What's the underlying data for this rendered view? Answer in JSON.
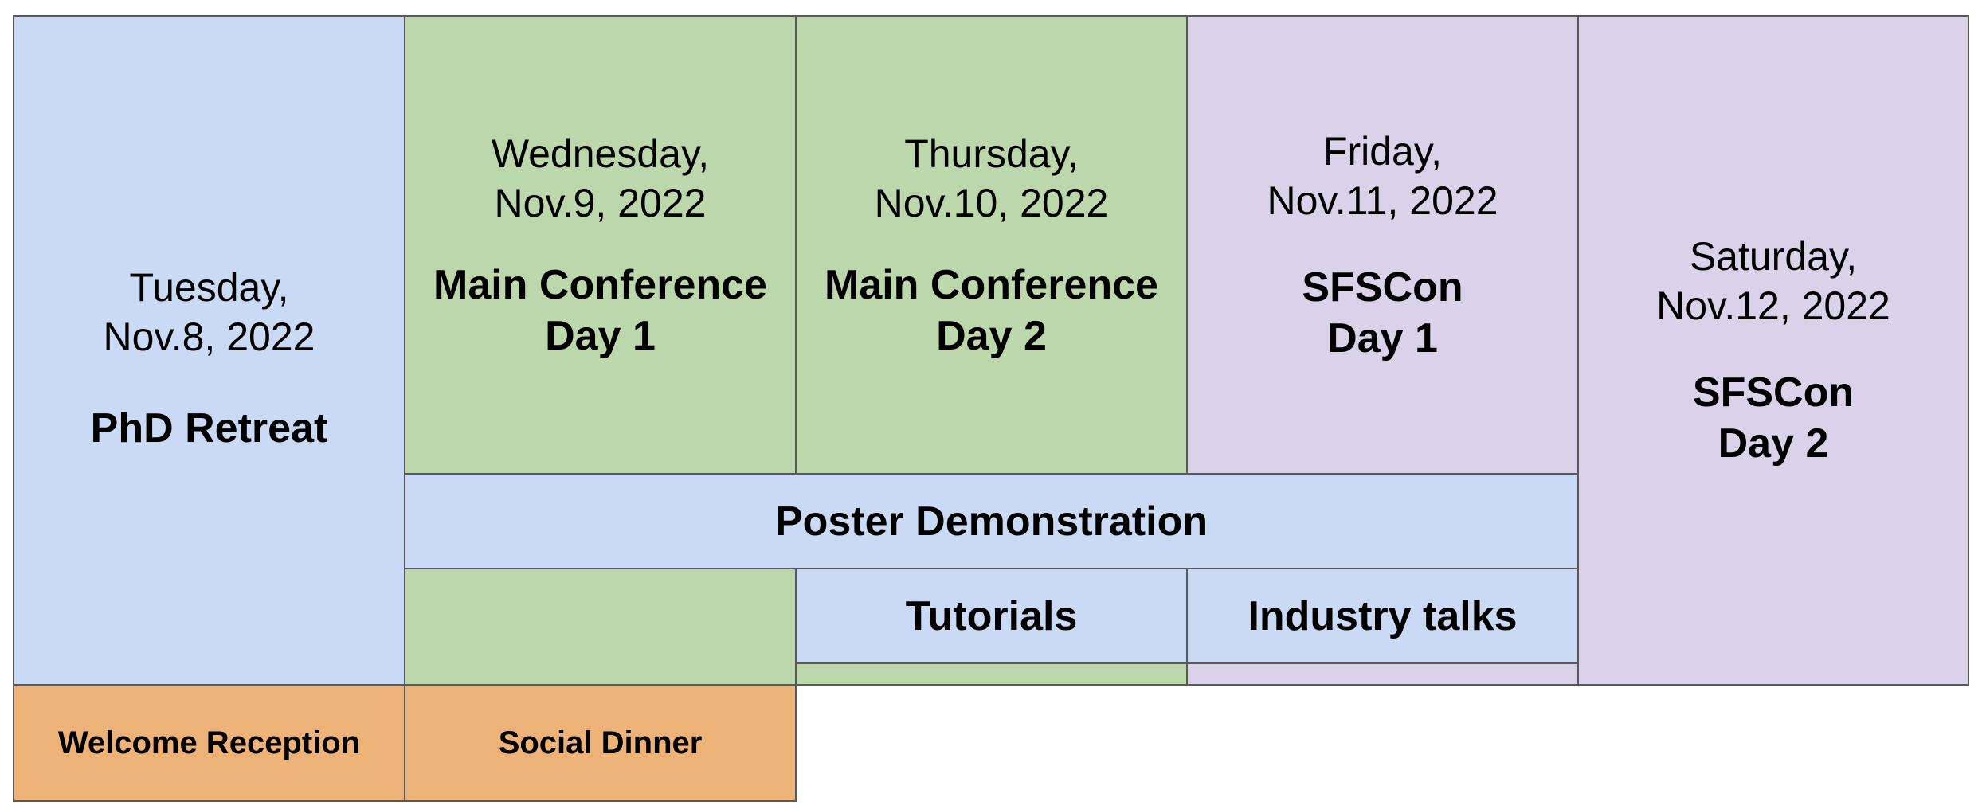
{
  "days": [
    {
      "date_line1": "Tuesday,",
      "date_line2": "Nov.8, 2022",
      "title_line1": "PhD Retreat",
      "title_line2": ""
    },
    {
      "date_line1": "Wednesday,",
      "date_line2": "Nov.9, 2022",
      "title_line1": "Main Conference",
      "title_line2": "Day 1"
    },
    {
      "date_line1": "Thursday,",
      "date_line2": "Nov.10, 2022",
      "title_line1": "Main Conference",
      "title_line2": "Day 2"
    },
    {
      "date_line1": "Friday,",
      "date_line2": "Nov.11, 2022",
      "title_line1": "SFSCon",
      "title_line2": "Day 1"
    },
    {
      "date_line1": "Saturday,",
      "date_line2": "Nov.12, 2022",
      "title_line1": "SFSCon",
      "title_line2": "Day 2"
    }
  ],
  "poster": "Poster Demonstration",
  "tutorials": "Tutorials",
  "industry": "Industry talks",
  "welcome": "Welcome Reception",
  "dinner": "Social Dinner",
  "colors": {
    "blue": "#cbdaf4",
    "green": "#bdd7ad",
    "purple": "#d9d2e8",
    "orange": "#edb277",
    "border": "#595959"
  }
}
